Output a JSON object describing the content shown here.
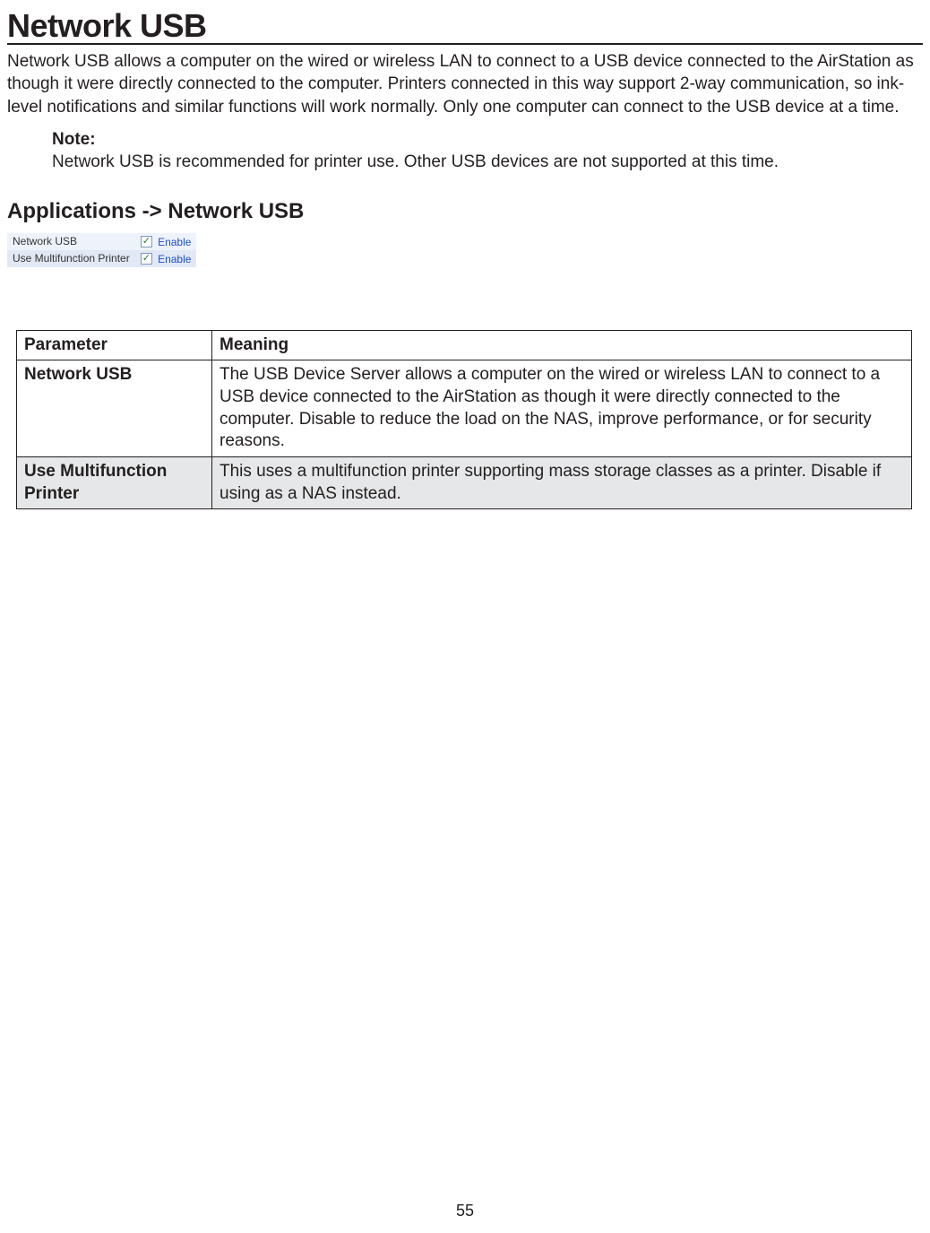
{
  "page": {
    "title": "Network USB",
    "intro": "Network USB allows a computer on the wired or wireless LAN to connect to a USB device connected to the AirStation as though it were directly connected to the computer. Printers connected in this way support 2-way communication, so ink-level notifications and similar functions will work normally. Only one computer can connect to the USB device at a time.",
    "note_label": "Note:",
    "note_text": "Network USB is recommended for printer use. Other USB devices are not supported at this time.",
    "section_heading": "Applications -> Network USB",
    "page_number": "55"
  },
  "settings": {
    "rows": [
      {
        "label": "Network USB",
        "checked": true,
        "value_text": "Enable"
      },
      {
        "label": "Use Multifunction Printer",
        "checked": true,
        "value_text": "Enable"
      }
    ],
    "colors": {
      "row_odd_bg": "#eef3fb",
      "row_even_bg": "#e2e9f5",
      "link_color": "#1a4fc7",
      "check_color": "#2a7a2a"
    }
  },
  "param_table": {
    "headers": [
      "Parameter",
      "Meaning"
    ],
    "rows": [
      {
        "param": "Network USB",
        "meaning": "The USB Device Server allows a computer on the wired or wireless LAN to connect to a USB device connected to the AirStation as though it were directly connected to the computer. Disable to reduce the load on the NAS, improve performance, or for security reasons.",
        "alt": false
      },
      {
        "param": "Use Multifunction Printer",
        "meaning": "This uses a multifunction printer supporting mass storage classes as a printer. Disable if using as a NAS instead.",
        "alt": true
      }
    ],
    "colors": {
      "alt_row_bg": "#e6e7e8",
      "border": "#231f20"
    }
  }
}
